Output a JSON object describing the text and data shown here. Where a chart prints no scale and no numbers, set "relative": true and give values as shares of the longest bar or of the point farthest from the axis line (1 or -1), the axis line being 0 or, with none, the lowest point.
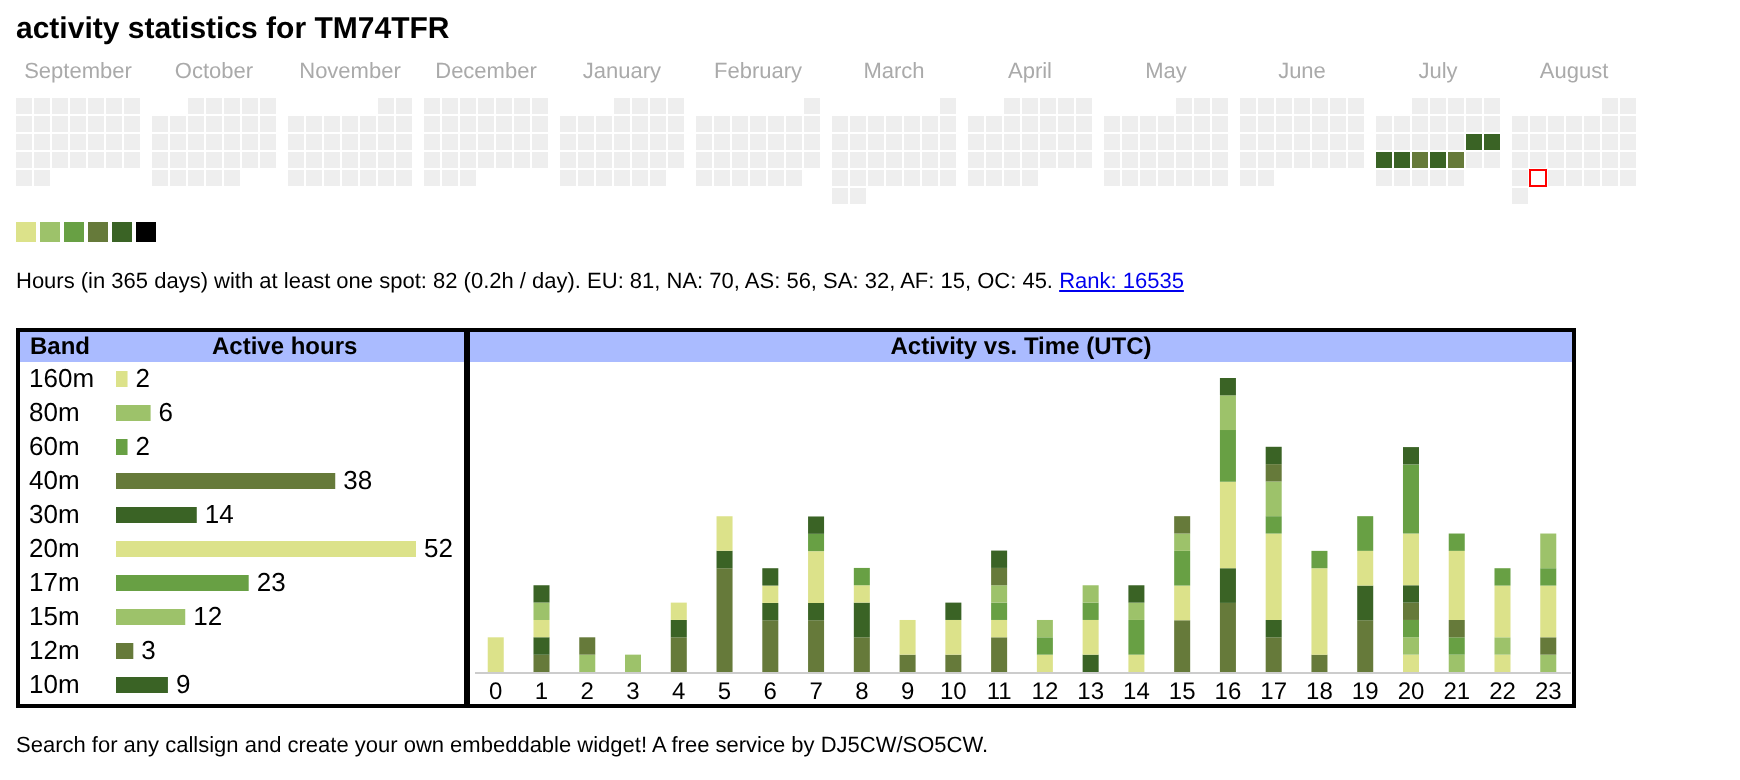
{
  "chart_data": [
    {
      "type": "other",
      "title": "activity statistics for TM74TFR",
      "categories": [
        "September",
        "October",
        "November",
        "December",
        "January",
        "February",
        "March",
        "April",
        "May",
        "June",
        "July",
        "August"
      ],
      "annotations": [
        "Hours (in 365 days) with at least one spot: 82 (0.2h / day). EU: 81, NA: 70, AS: 56, SA: 32, AF: 15, OC: 45.",
        "Rank: 16535",
        "Search for any callsign and create your own embeddable widget! A free service by DJ5CW/SO5CW."
      ]
    },
    {
      "type": "bar",
      "orientation": "horizontal",
      "ylabel": "Band",
      "xlabel": "Active hours",
      "categories": [
        "160m",
        "80m",
        "60m",
        "40m",
        "30m",
        "20m",
        "17m",
        "15m",
        "12m",
        "10m"
      ],
      "values": [
        2,
        6,
        2,
        38,
        14,
        52,
        23,
        12,
        3,
        9
      ],
      "colors": [
        "#dce28a",
        "#9dc26a",
        "#68a044",
        "#667a3a",
        "#3a6325",
        "#dce28a",
        "#68a044",
        "#9dc26a",
        "#667a3a",
        "#3a6325"
      ],
      "data_labels": true
    },
    {
      "type": "bar",
      "title": "Activity vs. Time (UTC)",
      "stacked": true,
      "relative": true,
      "categories": [
        "0",
        "1",
        "2",
        "3",
        "4",
        "5",
        "6",
        "7",
        "8",
        "9",
        "10",
        "11",
        "12",
        "13",
        "14",
        "15",
        "16",
        "17",
        "18",
        "19",
        "20",
        "21",
        "22",
        "23"
      ],
      "series": [
        {
          "color": "#dce28a",
          "values": [
            null,
            null,
            null,
            null,
            null,
            null,
            null,
            null,
            null,
            null,
            null,
            null,
            null,
            null,
            null,
            null,
            null,
            null,
            null,
            null,
            0.059,
            null,
            0.059,
            null
          ]
        },
        {
          "color": "#9dc26a",
          "values": [
            null,
            null,
            0.059,
            0.059,
            null,
            null,
            null,
            null,
            null,
            null,
            null,
            null,
            null,
            null,
            null,
            null,
            null,
            null,
            null,
            null,
            0.059,
            0.059,
            0.059,
            0.059
          ]
        },
        {
          "color": "#68a044",
          "values": [
            null,
            null,
            null,
            null,
            null,
            null,
            null,
            null,
            null,
            null,
            null,
            null,
            null,
            null,
            null,
            null,
            null,
            null,
            null,
            null,
            0.059,
            0.059,
            null,
            null
          ]
        },
        {
          "color": "#667a3a",
          "values": [
            null,
            0.059,
            0.059,
            null,
            0.118,
            0.353,
            0.176,
            0.176,
            0.118,
            0.059,
            0.059,
            0.118,
            null,
            null,
            null,
            0.176,
            0.235,
            0.118,
            0.059,
            0.176,
            0.059,
            0.059,
            null,
            0.059
          ]
        },
        {
          "color": "#3a6325",
          "values": [
            null,
            0.059,
            null,
            null,
            0.059,
            0.059,
            0.059,
            0.059,
            0.118,
            null,
            null,
            null,
            null,
            0.059,
            null,
            null,
            0.118,
            0.059,
            null,
            0.118,
            0.059,
            null,
            null,
            null
          ]
        },
        {
          "color": "#dce28a",
          "values": [
            0.118,
            0.059,
            null,
            null,
            0.059,
            0.118,
            0.059,
            0.176,
            0.059,
            0.118,
            0.118,
            0.059,
            0.059,
            0.118,
            0.059,
            0.118,
            0.294,
            0.294,
            0.294,
            0.118,
            0.176,
            0.235,
            0.176,
            0.176
          ]
        },
        {
          "color": "#68a044",
          "values": [
            null,
            null,
            null,
            null,
            null,
            null,
            null,
            0.059,
            0.059,
            null,
            null,
            0.059,
            0.059,
            0.059,
            0.118,
            0.118,
            0.176,
            0.059,
            0.059,
            0.118,
            0.235,
            0.059,
            0.059,
            0.059
          ]
        },
        {
          "color": "#9dc26a",
          "values": [
            null,
            0.059,
            null,
            null,
            null,
            null,
            null,
            null,
            null,
            null,
            null,
            0.059,
            0.059,
            0.059,
            0.059,
            0.059,
            0.118,
            0.118,
            null,
            null,
            null,
            null,
            null,
            0.118
          ]
        },
        {
          "color": "#667a3a",
          "values": [
            null,
            null,
            null,
            null,
            null,
            null,
            null,
            null,
            null,
            null,
            null,
            0.059,
            null,
            null,
            null,
            0.059,
            null,
            0.059,
            null,
            null,
            null,
            null,
            null,
            null
          ]
        },
        {
          "color": "#3a6325",
          "values": [
            null,
            0.059,
            null,
            null,
            null,
            null,
            0.059,
            0.059,
            null,
            null,
            0.059,
            0.059,
            null,
            null,
            0.059,
            null,
            0.059,
            0.059,
            null,
            null,
            0.059,
            null,
            null,
            null
          ]
        }
      ]
    }
  ]
}
